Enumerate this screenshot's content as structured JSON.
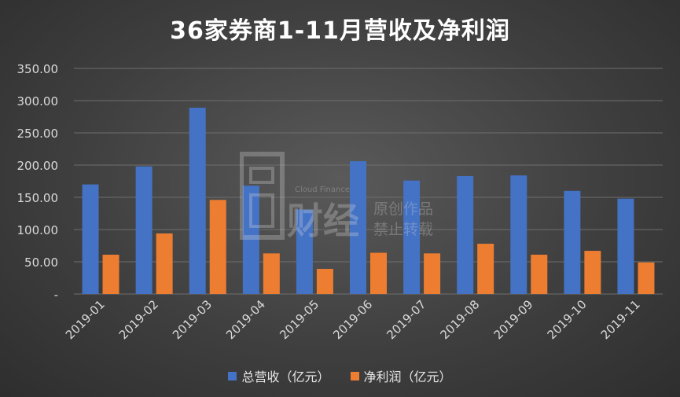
{
  "chart_data": {
    "type": "bar",
    "title": "36家券商1-11月营收及净利润",
    "categories": [
      "2019-01",
      "2019-02",
      "2019-03",
      "2019-04",
      "2019-05",
      "2019-06",
      "2019-07",
      "2019-08",
      "2019-09",
      "2019-10",
      "2019-11"
    ],
    "series": [
      {
        "name": "总营收（亿元）",
        "color": "#4472c4",
        "values": [
          170,
          198,
          289,
          168,
          131,
          206,
          176,
          183,
          184,
          160,
          148
        ]
      },
      {
        "name": "净利润（亿元）",
        "color": "#ed7d31",
        "values": [
          61,
          94,
          146,
          63,
          39,
          64,
          63,
          78,
          61,
          67,
          49
        ]
      }
    ],
    "yticks": [
      "-",
      "50.00",
      "100.00",
      "150.00",
      "200.00",
      "250.00",
      "300.00",
      "350.00"
    ],
    "ylim": [
      0,
      350
    ],
    "grid": true,
    "legend_position": "bottom"
  },
  "watermark": {
    "text_en": "Cloud Finance",
    "text_cn_line1": "原创作品",
    "text_cn_line2": "禁止转载"
  }
}
